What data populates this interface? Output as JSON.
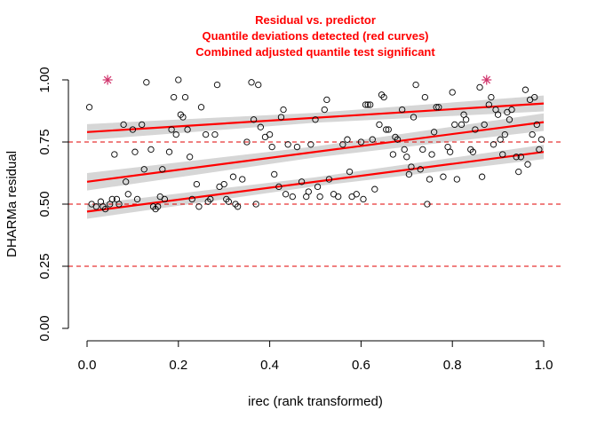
{
  "chart_data": {
    "type": "scatter",
    "title_lines": [
      "Residual vs. predictor",
      "Quantile deviations detected (red curves)",
      "Combined adjusted quantile test significant"
    ],
    "xlabel": "irec (rank transformed)",
    "ylabel": "DHARMa residual",
    "xlim": [
      0,
      1
    ],
    "ylim": [
      0,
      1
    ],
    "x_ticks": [
      "0.0",
      "0.2",
      "0.4",
      "0.6",
      "0.8",
      "1.0"
    ],
    "y_ticks": [
      "0.00",
      "0.25",
      "0.50",
      "0.75",
      "1.00"
    ],
    "reference_lines": [
      0.25,
      0.5,
      0.75
    ],
    "quantile_lines": [
      {
        "quantile": 0.25,
        "start": [
          0,
          0.47
        ],
        "end": [
          1,
          0.71
        ]
      },
      {
        "quantile": 0.5,
        "start": [
          0,
          0.59
        ],
        "end": [
          1,
          0.83
        ]
      },
      {
        "quantile": 0.75,
        "start": [
          0,
          0.79
        ],
        "end": [
          1,
          0.905
        ]
      }
    ],
    "outliers": [
      [
        0.045,
        1.0
      ],
      [
        0.875,
        1.0
      ]
    ],
    "points": [
      [
        0.005,
        0.89
      ],
      [
        0.01,
        0.5
      ],
      [
        0.02,
        0.49
      ],
      [
        0.03,
        0.51
      ],
      [
        0.035,
        0.49
      ],
      [
        0.04,
        0.48
      ],
      [
        0.05,
        0.5
      ],
      [
        0.055,
        0.52
      ],
      [
        0.06,
        0.7
      ],
      [
        0.065,
        0.52
      ],
      [
        0.07,
        0.5
      ],
      [
        0.08,
        0.82
      ],
      [
        0.085,
        0.59
      ],
      [
        0.09,
        0.54
      ],
      [
        0.1,
        0.8
      ],
      [
        0.105,
        0.71
      ],
      [
        0.11,
        0.52
      ],
      [
        0.12,
        0.82
      ],
      [
        0.125,
        0.64
      ],
      [
        0.13,
        0.99
      ],
      [
        0.14,
        0.72
      ],
      [
        0.145,
        0.49
      ],
      [
        0.15,
        0.48
      ],
      [
        0.155,
        0.49
      ],
      [
        0.16,
        0.53
      ],
      [
        0.165,
        0.64
      ],
      [
        0.17,
        0.52
      ],
      [
        0.18,
        0.71
      ],
      [
        0.185,
        0.8
      ],
      [
        0.19,
        0.93
      ],
      [
        0.195,
        0.78
      ],
      [
        0.2,
        1.0
      ],
      [
        0.205,
        0.86
      ],
      [
        0.21,
        0.85
      ],
      [
        0.215,
        0.93
      ],
      [
        0.22,
        0.8
      ],
      [
        0.225,
        0.69
      ],
      [
        0.23,
        0.52
      ],
      [
        0.24,
        0.58
      ],
      [
        0.245,
        0.49
      ],
      [
        0.25,
        0.89
      ],
      [
        0.26,
        0.78
      ],
      [
        0.265,
        0.51
      ],
      [
        0.27,
        0.52
      ],
      [
        0.28,
        0.78
      ],
      [
        0.285,
        0.98
      ],
      [
        0.29,
        0.57
      ],
      [
        0.3,
        0.58
      ],
      [
        0.305,
        0.52
      ],
      [
        0.31,
        0.51
      ],
      [
        0.32,
        0.61
      ],
      [
        0.325,
        0.5
      ],
      [
        0.33,
        0.49
      ],
      [
        0.34,
        0.6
      ],
      [
        0.35,
        0.75
      ],
      [
        0.36,
        0.99
      ],
      [
        0.365,
        0.84
      ],
      [
        0.37,
        0.5
      ],
      [
        0.375,
        0.98
      ],
      [
        0.38,
        0.81
      ],
      [
        0.39,
        0.77
      ],
      [
        0.4,
        0.78
      ],
      [
        0.405,
        0.73
      ],
      [
        0.41,
        0.62
      ],
      [
        0.42,
        0.57
      ],
      [
        0.425,
        0.85
      ],
      [
        0.43,
        0.88
      ],
      [
        0.435,
        0.54
      ],
      [
        0.44,
        0.74
      ],
      [
        0.45,
        0.53
      ],
      [
        0.46,
        0.73
      ],
      [
        0.47,
        0.59
      ],
      [
        0.48,
        0.53
      ],
      [
        0.485,
        0.55
      ],
      [
        0.49,
        0.74
      ],
      [
        0.5,
        0.84
      ],
      [
        0.505,
        0.57
      ],
      [
        0.51,
        0.53
      ],
      [
        0.52,
        0.88
      ],
      [
        0.525,
        0.92
      ],
      [
        0.53,
        0.6
      ],
      [
        0.54,
        0.54
      ],
      [
        0.55,
        0.53
      ],
      [
        0.56,
        0.74
      ],
      [
        0.57,
        0.76
      ],
      [
        0.575,
        0.63
      ],
      [
        0.58,
        0.53
      ],
      [
        0.59,
        0.54
      ],
      [
        0.6,
        0.75
      ],
      [
        0.605,
        0.52
      ],
      [
        0.61,
        0.9
      ],
      [
        0.615,
        0.9
      ],
      [
        0.62,
        0.9
      ],
      [
        0.625,
        0.76
      ],
      [
        0.63,
        0.56
      ],
      [
        0.64,
        0.82
      ],
      [
        0.645,
        0.94
      ],
      [
        0.65,
        0.93
      ],
      [
        0.655,
        0.8
      ],
      [
        0.66,
        0.8
      ],
      [
        0.67,
        0.7
      ],
      [
        0.675,
        0.77
      ],
      [
        0.68,
        0.76
      ],
      [
        0.69,
        0.88
      ],
      [
        0.695,
        0.72
      ],
      [
        0.7,
        0.69
      ],
      [
        0.705,
        0.62
      ],
      [
        0.71,
        0.65
      ],
      [
        0.715,
        0.85
      ],
      [
        0.72,
        0.98
      ],
      [
        0.73,
        0.64
      ],
      [
        0.735,
        0.72
      ],
      [
        0.74,
        0.93
      ],
      [
        0.745,
        0.5
      ],
      [
        0.75,
        0.6
      ],
      [
        0.755,
        0.7
      ],
      [
        0.76,
        0.79
      ],
      [
        0.765,
        0.89
      ],
      [
        0.77,
        0.89
      ],
      [
        0.78,
        0.61
      ],
      [
        0.79,
        0.73
      ],
      [
        0.795,
        0.71
      ],
      [
        0.8,
        0.95
      ],
      [
        0.805,
        0.82
      ],
      [
        0.81,
        0.6
      ],
      [
        0.82,
        0.82
      ],
      [
        0.825,
        0.86
      ],
      [
        0.83,
        0.84
      ],
      [
        0.84,
        0.72
      ],
      [
        0.845,
        0.71
      ],
      [
        0.85,
        0.8
      ],
      [
        0.86,
        0.97
      ],
      [
        0.865,
        0.61
      ],
      [
        0.87,
        0.82
      ],
      [
        0.88,
        0.9
      ],
      [
        0.885,
        0.93
      ],
      [
        0.89,
        0.74
      ],
      [
        0.895,
        0.88
      ],
      [
        0.9,
        0.86
      ],
      [
        0.905,
        0.76
      ],
      [
        0.91,
        0.7
      ],
      [
        0.915,
        0.78
      ],
      [
        0.92,
        0.87
      ],
      [
        0.925,
        0.84
      ],
      [
        0.93,
        0.88
      ],
      [
        0.94,
        0.69
      ],
      [
        0.945,
        0.63
      ],
      [
        0.95,
        0.69
      ],
      [
        0.96,
        0.96
      ],
      [
        0.965,
        0.66
      ],
      [
        0.97,
        0.92
      ],
      [
        0.975,
        0.78
      ],
      [
        0.98,
        0.93
      ],
      [
        0.985,
        0.82
      ],
      [
        0.99,
        0.72
      ],
      [
        0.995,
        0.76
      ]
    ],
    "colors": {
      "points": "#000000",
      "quantile_lines": "#ff0000",
      "confidence_band": "#d6d6d6",
      "reference_lines": "#e00000",
      "outliers": "#d0336b",
      "title": "#ff0000"
    },
    "grid": false,
    "legend": "none"
  }
}
